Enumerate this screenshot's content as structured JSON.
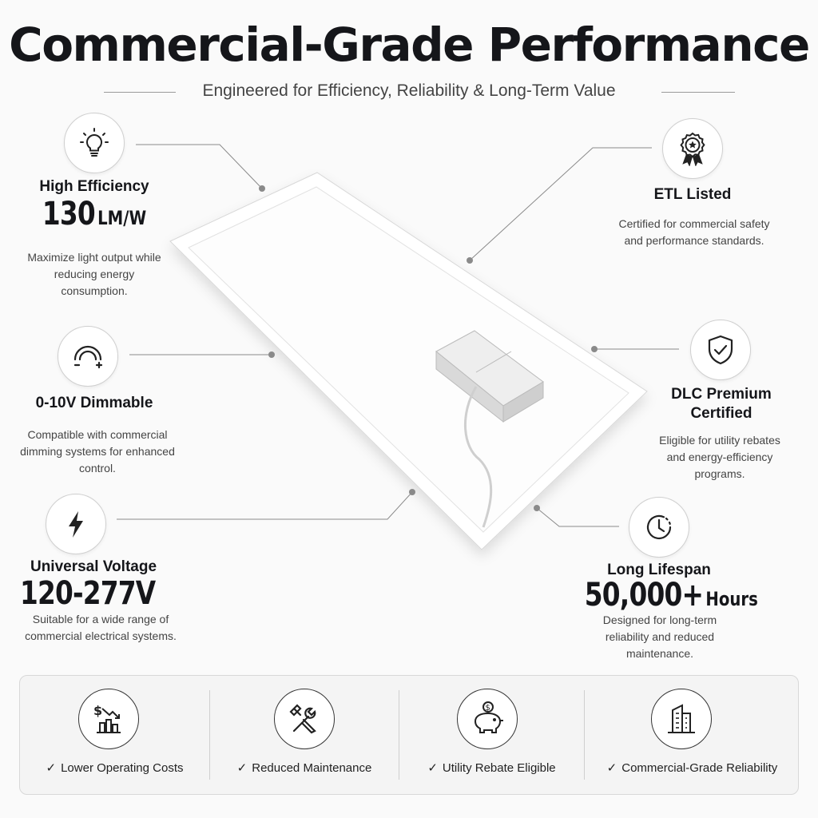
{
  "header": {
    "title": "Commercial-Grade Performance",
    "subtitle": "Engineered for Efficiency, Reliability & Long-Term Value"
  },
  "features": {
    "efficiency": {
      "icon": "lightbulb-icon",
      "title": "High Efficiency",
      "value": "130",
      "unit": "LM/W",
      "description": "Maximize light output while reducing energy consumption."
    },
    "dimmable": {
      "icon": "dimmer-icon",
      "title": "0-10V Dimmable",
      "description": "Compatible with commercial dimming systems for enhanced control."
    },
    "voltage": {
      "icon": "lightning-bolt-icon",
      "title": "Universal Voltage",
      "value": "120-277V",
      "description": "Suitable for a wide range of commercial electrical systems."
    },
    "etl": {
      "icon": "award-ribbon-icon",
      "title": "ETL Listed",
      "description": "Certified for commercial safety and performance standards."
    },
    "dlc": {
      "icon": "shield-check-icon",
      "title_line1": "DLC Premium",
      "title_line2": "Certified",
      "description": "Eligible for utility rebates and energy-efficiency programs."
    },
    "lifespan": {
      "icon": "clock-icon",
      "title": "Long Lifespan",
      "value": "50,000+",
      "unit": "Hours",
      "description": "Designed for long-term reliability and reduced maintenance."
    }
  },
  "benefits": [
    {
      "icon": "cost-down-chart-icon",
      "label": "Lower Operating Costs"
    },
    {
      "icon": "wrench-screwdriver-icon",
      "label": "Reduced Maintenance"
    },
    {
      "icon": "piggy-bank-icon",
      "label": "Utility Rebate Eligible"
    },
    {
      "icon": "office-building-icon",
      "label": "Commercial-Grade Reliability"
    }
  ],
  "check_mark": "✓"
}
